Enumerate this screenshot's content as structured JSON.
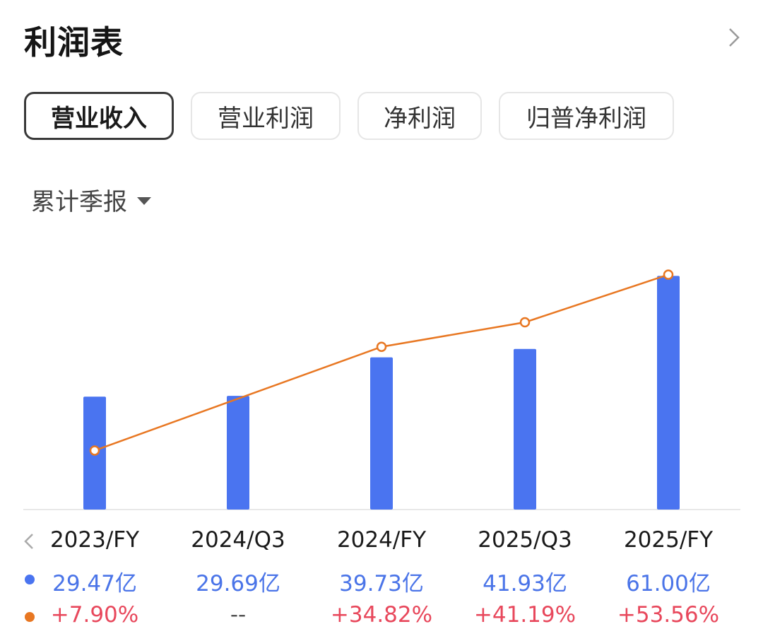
{
  "header": {
    "title": "利润表"
  },
  "tabs": [
    {
      "label": "营业收入",
      "active": true
    },
    {
      "label": "营业利润",
      "active": false
    },
    {
      "label": "净利润",
      "active": false
    },
    {
      "label": "归普净利润",
      "active": false
    }
  ],
  "period_select": {
    "label": "累计季报"
  },
  "colors": {
    "bar": "#4a74f0",
    "line": "#e87722",
    "growth_text": "#e8485c",
    "value_text": "#4a74e8"
  },
  "chart_data": {
    "type": "bar",
    "categories": [
      "2023/FY",
      "2024/Q3",
      "2024/FY",
      "2025/Q3",
      "2025/FY"
    ],
    "series": [
      {
        "values": [
          29.47,
          29.69,
          39.73,
          41.93,
          61.0
        ],
        "labels": [
          "29.47亿",
          "29.69亿",
          "39.73亿",
          "41.93亿",
          "61.00亿"
        ]
      }
    ],
    "line_series": {
      "values": [
        7.9,
        null,
        34.82,
        41.19,
        53.56
      ],
      "labels": [
        "+7.90%",
        "--",
        "+34.82%",
        "+41.19%",
        "+53.56%"
      ]
    }
  }
}
